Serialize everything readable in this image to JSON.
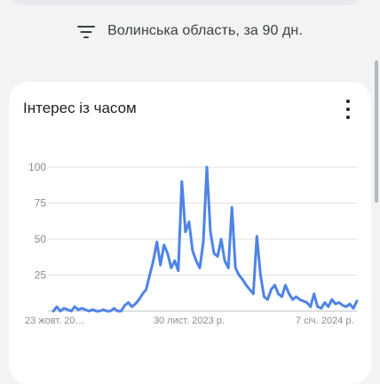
{
  "filter": {
    "icon": "filter-icon",
    "text": "Волинська область, за 90 дн."
  },
  "card": {
    "title": "Інтерес із часом",
    "menu_icon": "more-vert-icon"
  },
  "colors": {
    "series": "#4e84e8",
    "grid": "#e0e0e0",
    "axis_text": "#8a8d91"
  },
  "chart_data": {
    "type": "line",
    "title": "Інтерес із часом",
    "ylim": [
      0,
      100
    ],
    "yticks": [
      100,
      75,
      50,
      25
    ],
    "grid": true,
    "x_tick_labels": [
      "23 жовт. 20…",
      "30 лист. 2023 р.",
      "7 січ. 2024 р."
    ],
    "x_tick_indices": [
      0,
      38,
      76
    ],
    "series": [
      {
        "values": [
          0,
          3,
          0,
          2,
          1,
          0,
          3,
          1,
          2,
          1,
          0,
          1,
          0,
          0,
          1,
          0,
          0,
          2,
          0,
          0,
          4,
          6,
          3,
          5,
          8,
          12,
          15,
          25,
          35,
          48,
          32,
          46,
          40,
          30,
          35,
          28,
          90,
          55,
          62,
          42,
          35,
          30,
          48,
          100,
          55,
          40,
          38,
          50,
          35,
          30,
          72,
          30,
          25,
          22,
          18,
          15,
          12,
          52,
          25,
          10,
          8,
          15,
          18,
          12,
          10,
          18,
          12,
          8,
          10,
          8,
          7,
          6,
          3,
          12,
          3,
          2,
          6,
          3,
          8,
          5,
          6,
          4,
          3,
          5,
          2,
          7
        ]
      }
    ]
  }
}
